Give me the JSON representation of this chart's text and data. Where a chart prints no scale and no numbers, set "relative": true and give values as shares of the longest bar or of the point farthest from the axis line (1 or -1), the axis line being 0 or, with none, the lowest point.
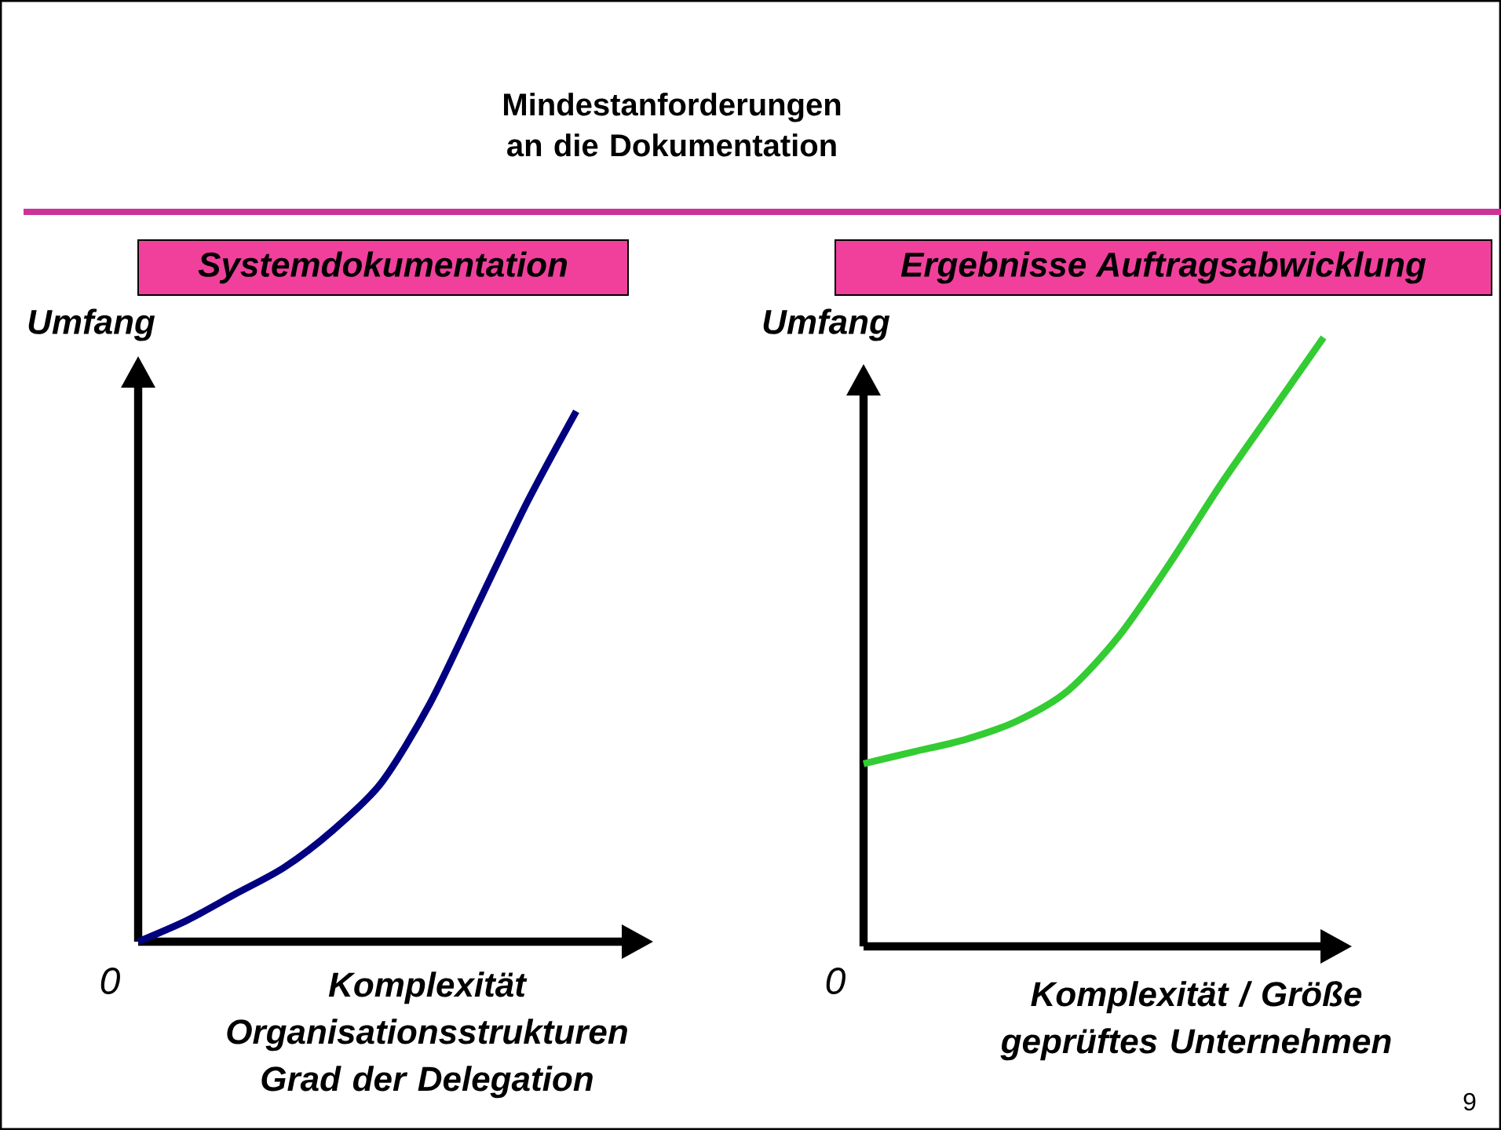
{
  "chart_data": [
    {
      "type": "line",
      "title": "Systemdokumentation",
      "ylabel": "Umfang",
      "xlabel": "Komplexität Organisationsstrukturen Grad der Delegation",
      "relative": true,
      "categories": [
        null,
        null,
        null,
        null,
        null,
        null,
        null,
        null,
        null,
        null
      ],
      "series": [
        {
          "color": "#000080",
          "values": [
            0,
            0.04,
            0.09,
            0.14,
            0.21,
            0.3,
            0.45,
            0.64,
            0.83,
            1
          ]
        }
      ],
      "annotations": [
        "Mindestanforderungen an die Dokumentation",
        "0"
      ]
    },
    {
      "type": "line",
      "title": "Ergebnisse Auftragsabwicklung",
      "ylabel": "Umfang",
      "xlabel": "Komplexität / Größe geprüftes Unternehmen",
      "relative": true,
      "categories": [
        null,
        null,
        null,
        null,
        null,
        null,
        null,
        null,
        null,
        null
      ],
      "series": [
        {
          "color": "#33cc33",
          "values": [
            0.3,
            0.32,
            0.34,
            0.37,
            0.42,
            0.51,
            0.63,
            0.76,
            0.88,
            1
          ]
        }
      ],
      "annotations": [
        "0",
        "9"
      ]
    }
  ]
}
